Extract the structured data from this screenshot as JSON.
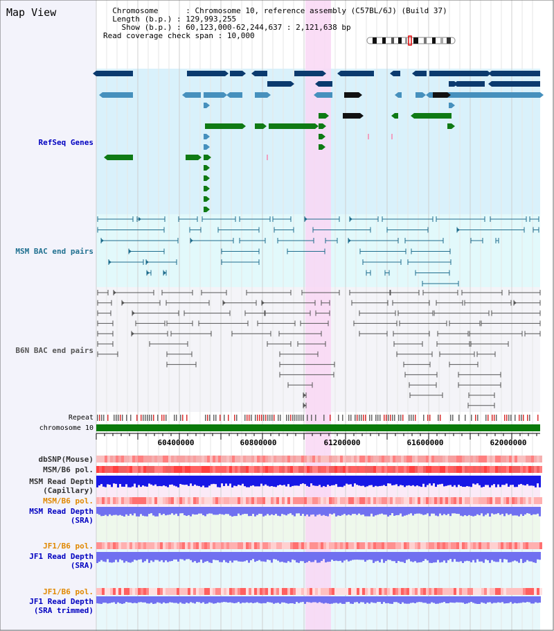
{
  "title": "Map View",
  "info": {
    "chromosome_key": "Chromosome",
    "chromosome_val": "Chromosome 10, reference assembly (C57BL/6J) (Build 37)",
    "length_key": "Length (b.p.)",
    "length_val": "129,993,255",
    "show_key": "Show (b.p.)",
    "show_val": "60,123,000-62,244,637 : 2,121,638 bp",
    "coverage_key": "Read coverage check span",
    "coverage_val": "10,000"
  },
  "tracks": {
    "refseq": "RefSeq Genes",
    "msm_bac": "MSM BAC end pairs",
    "b6n_bac": "B6N BAC end pairs",
    "repeat": "Repeat",
    "chromosome": "chromosome 10",
    "dbsnp": "dbSNP(Mouse)",
    "msm_b6_pol_1": "MSM/B6 pol.",
    "msm_depth_cap_1": "MSM Read Depth",
    "msm_depth_cap_2": "(Capillary)",
    "msm_b6_pol_2": "MSM/B6 pol.",
    "msm_depth_sra_1": "MSM Read Depth",
    "msm_depth_sra_2": "(SRA)",
    "jf1_b6_pol_1": "JF1/B6 pol.",
    "jf1_depth_sra_1": "JF1 Read Depth",
    "jf1_depth_sra_2": "(SRA)",
    "jf1_b6_pol_2": "JF1/B6 pol.",
    "jf1_depth_trim_1": "JF1 Read Depth",
    "jf1_depth_trim_2": "(SRA trimmed)"
  },
  "axis": {
    "ticks": [
      "60400000",
      "60800000",
      "61200000",
      "61600000",
      "62000000"
    ]
  },
  "colors": {
    "refseq_bg": "#d9f1fb",
    "msm_bg": "#e2f9fb",
    "b6n_bg": "#f4f4f8",
    "highlight": "#f9d7f5",
    "gene_dark": "#0b3a6e",
    "gene_mid": "#4690bd",
    "gene_green": "#0f7a14",
    "msm_line": "#1e6c8c",
    "b6n_line": "#555555",
    "chromosome_bar": "#0a7a0a",
    "depth_blue": "#1818e6",
    "depth_violet": "#7070f0",
    "label_blue": "#0000c0",
    "label_teal": "#207090",
    "label_orange": "#e08800"
  }
}
